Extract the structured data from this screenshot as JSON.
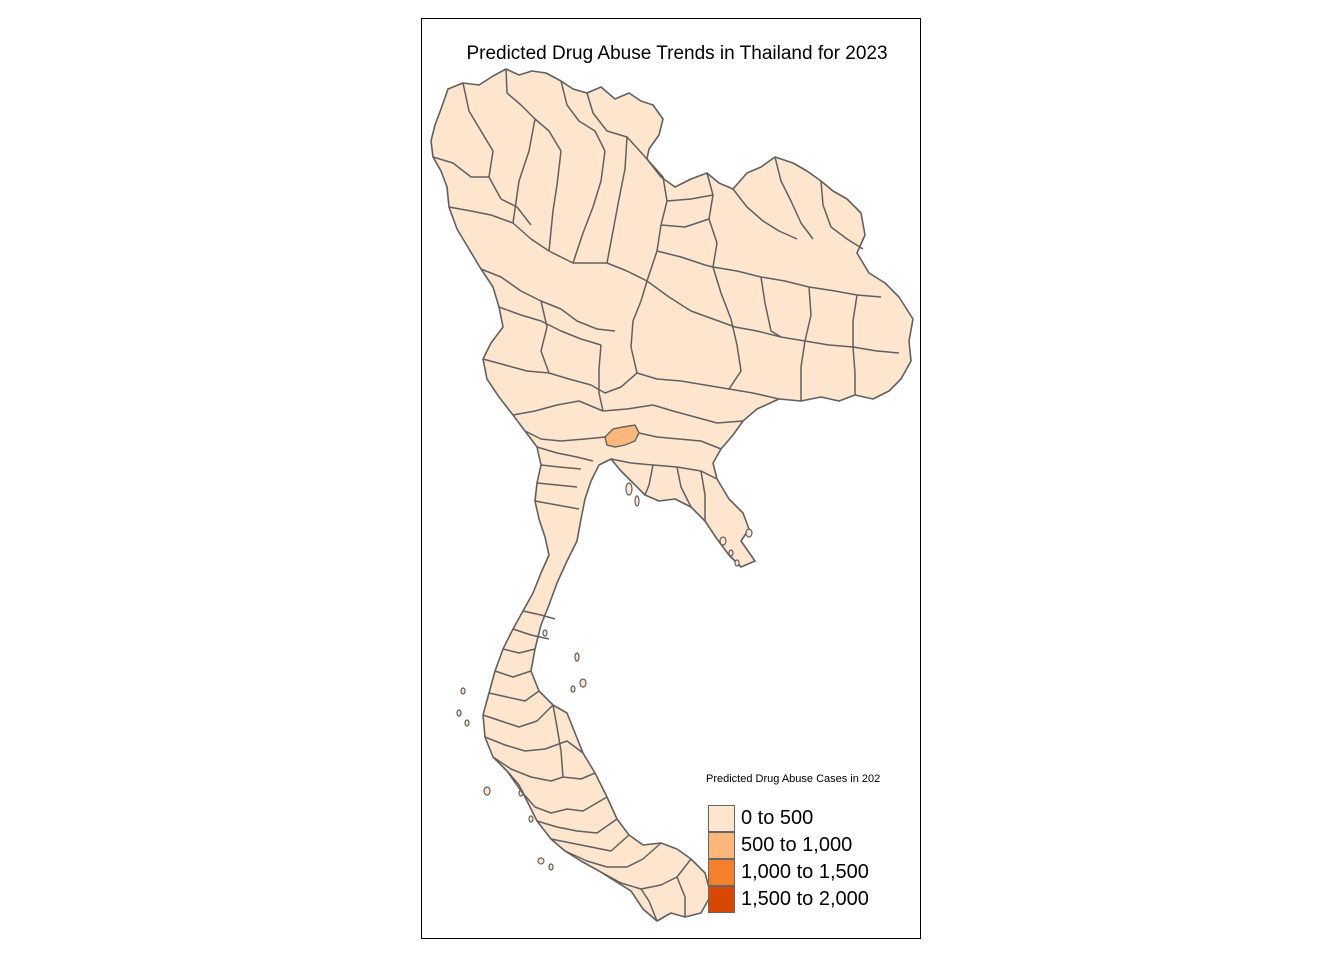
{
  "title": "Predicted Drug Abuse Trends in Thailand for 2023",
  "legend": {
    "title": "Predicted Drug Abuse Cases in 202",
    "items": [
      {
        "label": "0 to 500",
        "color": "#fde5ce"
      },
      {
        "label": "500 to 1,000",
        "color": "#fdb77a"
      },
      {
        "label": "1,000 to 1,500",
        "color": "#f5802b"
      },
      {
        "label": "1,500 to 2,000",
        "color": "#d84801"
      }
    ]
  },
  "colors": {
    "province_fill": "#fde5ce",
    "highlight_fill": "#fdb77a",
    "boundary": "#606060",
    "frame": "#000000"
  }
}
